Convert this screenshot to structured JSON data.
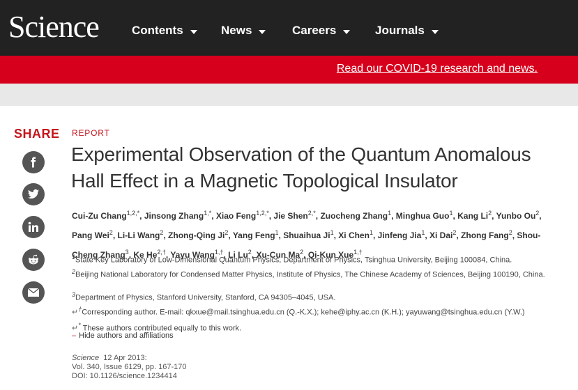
{
  "header": {
    "logo": "Science",
    "nav": [
      {
        "label": "Contents"
      },
      {
        "label": "News"
      },
      {
        "label": "Careers"
      },
      {
        "label": "Journals"
      }
    ]
  },
  "banner": {
    "covid_link": "Read our COVID-19 research and news."
  },
  "share": {
    "label": "SHARE",
    "buttons": [
      "facebook-icon",
      "twitter-icon",
      "linkedin-icon",
      "reddit-icon",
      "email-icon"
    ]
  },
  "article": {
    "type": "REPORT",
    "title_line1": "Experimental Observation of the Quantum Anomalous",
    "title_line2": "Hall Effect in a Magnetic Topological Insulator",
    "authors": [
      {
        "name": "Cui-Zu Chang",
        "sup": "1,2,*"
      },
      {
        "name": "Jinsong Zhang",
        "sup": "1,*"
      },
      {
        "name": "Xiao Feng",
        "sup": "1,2,*"
      },
      {
        "name": "Jie Shen",
        "sup": "2,*"
      },
      {
        "name": "Zuocheng Zhang",
        "sup": "1"
      },
      {
        "name": "Minghua Guo",
        "sup": "1"
      },
      {
        "name": "Kang Li",
        "sup": "2"
      },
      {
        "name": "Yunbo Ou",
        "sup": "2"
      },
      {
        "name": "Pang Wei",
        "sup": "2"
      },
      {
        "name": "Li-Li Wang",
        "sup": "2"
      },
      {
        "name": "Zhong-Qing Ji",
        "sup": "2"
      },
      {
        "name": "Yang Feng",
        "sup": "1"
      },
      {
        "name": "Shuaihua Ji",
        "sup": "1"
      },
      {
        "name": "Xi Chen",
        "sup": "1"
      },
      {
        "name": "Jinfeng Jia",
        "sup": "1"
      },
      {
        "name": "Xi Dai",
        "sup": "2"
      },
      {
        "name": "Zhong Fang",
        "sup": "2"
      },
      {
        "name": "Shou-Cheng Zhang",
        "sup": "3"
      },
      {
        "name": "Ke He",
        "sup": "2,†"
      },
      {
        "name": "Yayu Wang",
        "sup": "1,†"
      },
      {
        "name": "Li Lu",
        "sup": "2"
      },
      {
        "name": "Xu-Cun Ma",
        "sup": "2"
      },
      {
        "name": "Qi-Kun Xue",
        "sup": "1,†"
      }
    ],
    "affiliations": [
      {
        "sup": "1",
        "text": "State Key Laboratory of Low-Dimensional Quantum Physics, Department of Physics, Tsinghua University, Beijing 100084, China."
      },
      {
        "sup": "2",
        "text": "Beijing National Laboratory for Condensed Matter Physics, Institute of Physics, The Chinese Academy of Sciences, Beijing 100190, China."
      },
      {
        "sup": "3",
        "text": "Department of Physics, Stanford University, Stanford, CA 94305–4045, USA."
      }
    ],
    "corresponding": "Corresponding author. E-mail: qkxue@mail.tsinghua.edu.cn (Q.-K.X.); kehe@iphy.ac.cn (K.H.); yayuwang@tsinghua.edu.cn (Y.W.)",
    "equal": "These authors contributed equally to this work.",
    "hide_label": "Hide authors and affiliations",
    "journal": "Science",
    "date": "12 Apr 2013:",
    "volume": "Vol. 340, Issue 6129, pp. 167-170",
    "doi": "DOI: 10.1126/science.1234414"
  }
}
